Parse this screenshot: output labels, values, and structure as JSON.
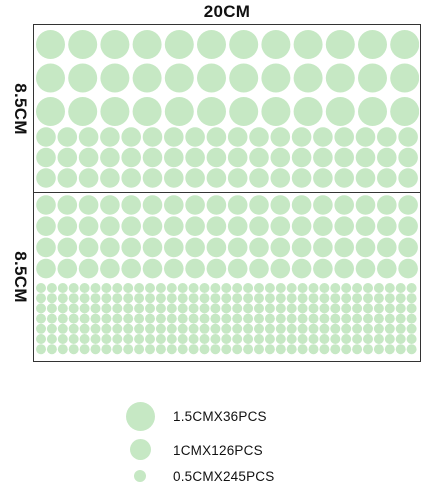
{
  "dimension_labels": {
    "width": "20CM",
    "height_top": "8.5CM",
    "height_bottom": "8.5CM"
  },
  "sticker_color": "#c6e8c4",
  "legend": [
    {
      "size": "large",
      "label": "1.5CMX36PCS"
    },
    {
      "size": "medium",
      "label": "1CMX126PCS"
    },
    {
      "size": "small",
      "label": "0.5CMX245PCS"
    }
  ]
}
